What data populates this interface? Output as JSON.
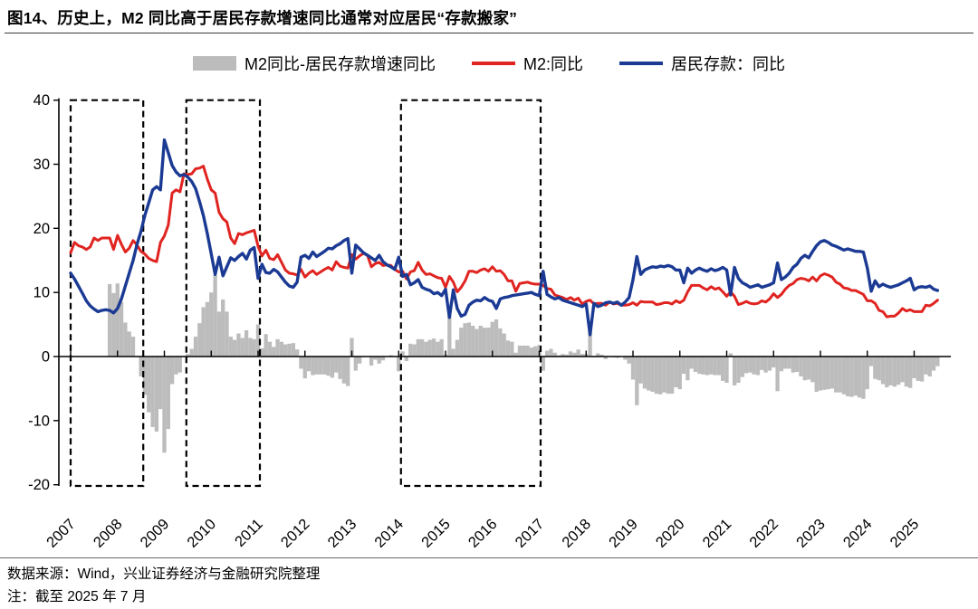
{
  "header": {
    "title": "图14、历史上，M2 同比高于居民存款增速同比通常对应居民“存款搬家”"
  },
  "legend": [
    {
      "label": "M2同比-居民存款增速同比",
      "swatch": "bar",
      "color": "#bcbcbc"
    },
    {
      "label": "M2:同比",
      "swatch": "line",
      "color": "#e02420"
    },
    {
      "label": "居民存款：同比",
      "swatch": "line",
      "color": "#1b3a94"
    }
  ],
  "footer": {
    "source": "数据来源：Wind，兴业证券经济与金融研究院整理",
    "note": "注：截至 2025 年 7 月"
  },
  "chart_data": {
    "type": "combo-bar-line",
    "x_start": "2007-01",
    "x_freq": "monthly",
    "x_end": "2025-07",
    "x_tick_labels": [
      "2007",
      "2008",
      "2009",
      "2010",
      "2011",
      "2012",
      "2013",
      "2014",
      "2015",
      "2016",
      "2017",
      "2018",
      "2019",
      "2020",
      "2021",
      "2022",
      "2023",
      "2024",
      "2025"
    ],
    "y_ticks": [
      40,
      30,
      20,
      10,
      0,
      -10,
      -20
    ],
    "ylim": [
      -20,
      40
    ],
    "grid": false,
    "legend_position": "top-center",
    "highlight_boxes": [
      {
        "from": 2007.0,
        "to": 2008.55
      },
      {
        "from": 2009.47,
        "to": 2011.04
      },
      {
        "from": 2014.05,
        "to": 2017.03
      }
    ],
    "series": [
      {
        "name": "M2同比-居民存款增速同比",
        "type": "bar",
        "color": "#bcbcbc",
        "values": [
          null,
          null,
          null,
          null,
          null,
          null,
          null,
          null,
          null,
          null,
          11.3,
          9.9,
          11.4,
          8.5,
          5.3,
          3.9,
          3.1,
          -0.1,
          -3.1,
          -6.0,
          -8.7,
          -11.0,
          -11.7,
          -8.2,
          -15.0,
          -11.3,
          -4.3,
          -2.8,
          -2.5,
          0.1,
          0.4,
          1.2,
          3.1,
          5.2,
          7.7,
          8.5,
          10.0,
          12.7,
          7.0,
          8.9,
          7.0,
          3.1,
          2.6,
          3.6,
          2.9,
          4.1,
          2.9,
          2.7,
          5.0,
          1.3,
          3.5,
          2.3,
          1.5,
          2.7,
          2.3,
          1.9,
          2.0,
          2.1,
          1.1,
          -1.9,
          -3.4,
          -2.3,
          -2.9,
          -2.8,
          -2.8,
          -2.8,
          -3.0,
          -3.3,
          -2.5,
          -3.5,
          -4.2,
          -4.6,
          2.9,
          -2.2,
          -1.1,
          -0.1,
          0.0,
          -1.4,
          -0.5,
          -1.1,
          -0.6,
          0.0,
          0.2,
          0.0,
          -2.3,
          0.8,
          -0.7,
          2.0,
          1.9,
          2.7,
          2.7,
          2.3,
          2.6,
          2.8,
          2.3,
          2.7,
          0.3,
          6.4,
          1.2,
          2.6,
          4.5,
          5.2,
          5.3,
          4.8,
          4.3,
          4.8,
          4.5,
          4.5,
          5.4,
          5.8,
          4.4,
          3.6,
          2.5,
          2.3,
          0.6,
          1.7,
          1.7,
          1.7,
          1.4,
          1.6,
          1.8,
          -2.2,
          0.9,
          1.2,
          0.6,
          0.2,
          0.4,
          0.3,
          0.8,
          0.6,
          1.1,
          0.4,
          0.4,
          5.4,
          -0.1,
          0.5,
          0.3,
          -0.4,
          0.0,
          -0.1,
          -0.2,
          0.0,
          -0.5,
          -1.1,
          -3.6,
          -7.6,
          -4.2,
          -5.0,
          -5.3,
          -5.5,
          -5.8,
          -5.9,
          -5.6,
          -5.8,
          -5.8,
          -4.8,
          -5.1,
          -2.7,
          -3.7,
          -1.9,
          -2.4,
          -2.7,
          -2.8,
          -2.9,
          -2.8,
          -2.9,
          -2.9,
          -3.8,
          -4.1,
          0.5,
          -4.5,
          -4.1,
          -3.2,
          -2.6,
          -2.5,
          -2.8,
          -2.9,
          -2.1,
          -2.5,
          -2.2,
          -1.7,
          -5.4,
          -2.3,
          -1.9,
          -1.9,
          -2.5,
          -2.4,
          -3.1,
          -3.7,
          -3.6,
          -4.0,
          -5.5,
          -5.3,
          -5.2,
          -5.1,
          -5.0,
          -5.6,
          -5.6,
          -5.9,
          -6.2,
          -6.3,
          -6.1,
          -6.4,
          -6.6,
          -5.1,
          -1.5,
          -3.5,
          -3.7,
          -4.3,
          -4.8,
          -4.5,
          -4.7,
          -4.4,
          -4.0,
          -4.7,
          -4.9,
          -3.4,
          -3.8,
          -3.9,
          -2.8,
          -3.1,
          -2.2,
          -1.5
        ]
      },
      {
        "name": "M2:同比",
        "type": "line",
        "color": "#e02420",
        "values": [
          16.2,
          17.8,
          17.3,
          17.1,
          16.7,
          17.1,
          18.5,
          18.1,
          18.5,
          18.5,
          18.5,
          16.7,
          18.9,
          17.5,
          16.3,
          16.9,
          18.1,
          17.4,
          16.4,
          16.0,
          15.3,
          15.0,
          14.8,
          17.8,
          18.8,
          20.5,
          25.5,
          26.0,
          25.7,
          28.5,
          28.4,
          28.5,
          29.3,
          29.4,
          29.7,
          27.7,
          26.0,
          25.5,
          22.5,
          21.5,
          21.0,
          18.5,
          17.6,
          19.2,
          19.0,
          19.3,
          19.5,
          19.7,
          17.2,
          15.7,
          16.6,
          15.3,
          15.1,
          15.9,
          14.7,
          13.5,
          13.0,
          12.9,
          12.7,
          13.6,
          12.4,
          13.0,
          13.4,
          12.8,
          13.2,
          13.6,
          13.9,
          13.5,
          14.8,
          14.1,
          13.9,
          13.8,
          15.9,
          15.2,
          15.7,
          16.1,
          15.8,
          14.0,
          14.5,
          14.7,
          14.2,
          14.3,
          14.2,
          13.6,
          13.2,
          13.3,
          12.1,
          13.2,
          13.4,
          14.7,
          13.5,
          12.8,
          12.9,
          12.6,
          12.3,
          12.2,
          10.8,
          12.5,
          11.6,
          10.1,
          10.8,
          11.8,
          13.3,
          13.3,
          13.1,
          13.5,
          13.7,
          13.3,
          14.0,
          13.3,
          13.4,
          12.8,
          11.8,
          11.8,
          10.2,
          11.4,
          11.5,
          11.6,
          11.4,
          11.3,
          11.3,
          11.1,
          10.6,
          10.5,
          9.6,
          9.4,
          9.2,
          8.9,
          9.2,
          8.8,
          9.1,
          8.2,
          8.6,
          8.8,
          8.2,
          8.3,
          8.3,
          8.0,
          8.5,
          8.2,
          8.3,
          8.0,
          8.0,
          8.1,
          8.4,
          8.0,
          8.6,
          8.5,
          8.5,
          8.5,
          8.1,
          8.2,
          8.4,
          8.4,
          8.2,
          8.7,
          8.4,
          8.8,
          10.1,
          11.1,
          11.1,
          11.1,
          10.7,
          10.4,
          10.9,
          10.5,
          10.7,
          10.1,
          9.4,
          10.1,
          9.4,
          8.1,
          8.3,
          8.6,
          8.3,
          8.2,
          8.3,
          8.7,
          8.5,
          9.0,
          9.8,
          9.2,
          9.7,
          10.5,
          11.1,
          11.4,
          12.0,
          12.2,
          12.1,
          11.8,
          12.4,
          11.8,
          12.6,
          12.9,
          12.7,
          12.4,
          11.6,
          11.3,
          10.7,
          10.6,
          10.3,
          10.3,
          10.0,
          9.7,
          8.7,
          8.7,
          8.3,
          7.2,
          7.0,
          6.2,
          6.3,
          6.3,
          6.8,
          7.5,
          7.1,
          7.3,
          7.0,
          7.0,
          7.0,
          8.0,
          7.9,
          8.3,
          8.8
        ]
      },
      {
        "name": "居民存款：同比",
        "type": "line",
        "color": "#1b3a94",
        "values": [
          13.0,
          12.1,
          11.0,
          9.9,
          8.7,
          7.9,
          7.4,
          7.0,
          7.2,
          7.3,
          7.2,
          6.8,
          7.5,
          9.0,
          11.0,
          13.0,
          15.0,
          17.5,
          19.5,
          22.0,
          24.0,
          26.0,
          26.5,
          26.0,
          33.8,
          31.8,
          29.8,
          28.8,
          28.2,
          28.4,
          28.0,
          27.3,
          26.2,
          24.2,
          22.0,
          19.2,
          16.0,
          12.8,
          15.5,
          12.6,
          14.0,
          15.4,
          15.0,
          15.6,
          16.1,
          15.2,
          16.6,
          17.0,
          12.2,
          14.4,
          13.1,
          13.0,
          13.6,
          13.2,
          12.4,
          11.6,
          11.0,
          10.8,
          11.6,
          15.5,
          15.8,
          15.3,
          16.3,
          15.6,
          16.0,
          16.4,
          16.9,
          16.8,
          17.3,
          17.6,
          18.1,
          18.4,
          13.0,
          17.4,
          16.8,
          16.2,
          15.8,
          15.4,
          15.0,
          15.8,
          14.8,
          14.3,
          14.0,
          13.6,
          15.5,
          12.5,
          12.8,
          11.2,
          11.5,
          12.0,
          10.8,
          10.5,
          10.3,
          9.8,
          10.0,
          9.5,
          10.5,
          6.1,
          10.4,
          7.5,
          6.3,
          6.6,
          8.0,
          8.5,
          8.8,
          8.7,
          9.2,
          8.8,
          8.6,
          7.5,
          9.0,
          9.2,
          9.3,
          9.5,
          9.6,
          9.7,
          9.8,
          9.9,
          10.0,
          9.7,
          9.5,
          13.3,
          9.7,
          9.3,
          9.0,
          9.2,
          8.8,
          8.6,
          8.4,
          8.2,
          8.0,
          7.8,
          8.2,
          3.4,
          8.3,
          7.8,
          8.0,
          8.4,
          8.5,
          8.3,
          8.5,
          8.0,
          8.5,
          9.2,
          12.0,
          15.6,
          12.8,
          13.5,
          13.8,
          14.0,
          13.9,
          14.1,
          14.0,
          14.2,
          14.0,
          13.5,
          13.5,
          11.5,
          13.8,
          13.0,
          13.5,
          13.8,
          13.5,
          13.3,
          13.7,
          13.4,
          13.6,
          13.9,
          13.5,
          9.6,
          13.9,
          12.2,
          11.5,
          11.2,
          10.8,
          11.0,
          11.2,
          10.8,
          11.0,
          11.2,
          11.5,
          14.6,
          12.0,
          12.4,
          13.0,
          13.9,
          14.4,
          15.3,
          15.8,
          15.4,
          16.4,
          17.3,
          17.9,
          18.1,
          17.8,
          17.4,
          17.2,
          16.9,
          16.6,
          16.8,
          16.6,
          16.4,
          16.4,
          16.3,
          13.8,
          10.2,
          11.8,
          10.9,
          11.3,
          11.0,
          10.8,
          11.0,
          11.2,
          11.5,
          11.8,
          12.2,
          10.4,
          10.8,
          10.9,
          10.8,
          11.0,
          10.5,
          10.3
        ]
      }
    ]
  }
}
